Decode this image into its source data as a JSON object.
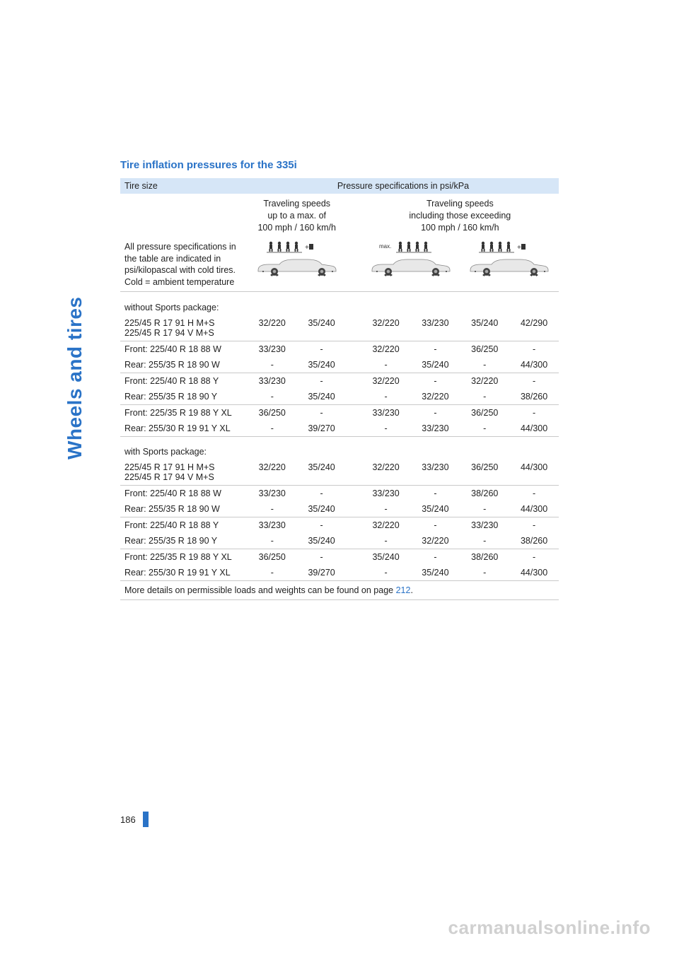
{
  "sidebar_label": "Wheels and tires",
  "section_title": "Tire inflation pressures for the 335i",
  "header": {
    "tire_size": "Tire size",
    "pressure_spec": "Pressure specifications in psi/kPa",
    "speed_low": "Traveling speeds\nup to a max. of\n100 mph / 160 km/h",
    "speed_high": "Traveling speeds\nincluding those exceeding\n100 mph / 160 km/h",
    "note": "All pressure specifications in the table are indicated in psi/kilopascal with cold tires. Cold = ambient temperature"
  },
  "sections": [
    {
      "label": "without Sports package:",
      "rows": [
        {
          "size": "225/45 R 17 91 H M+S\n225/45 R 17 94 V M+S",
          "v": [
            "32/220",
            "35/240",
            "32/220",
            "33/230",
            "35/240",
            "42/290"
          ],
          "rule": true
        },
        {
          "size": "Front: 225/40 R 18 88 W",
          "v": [
            "33/230",
            "-",
            "32/220",
            "-",
            "36/250",
            "-"
          ],
          "rule": false
        },
        {
          "size": "Rear: 255/35 R 18 90 W",
          "v": [
            "-",
            "35/240",
            "-",
            "35/240",
            "-",
            "44/300"
          ],
          "rule": true
        },
        {
          "size": "Front: 225/40 R 18 88 Y",
          "v": [
            "33/230",
            "-",
            "32/220",
            "-",
            "32/220",
            "-"
          ],
          "rule": false
        },
        {
          "size": "Rear: 255/35 R 18 90 Y",
          "v": [
            "-",
            "35/240",
            "-",
            "32/220",
            "-",
            "38/260"
          ],
          "rule": true
        },
        {
          "size": "Front: 225/35 R 19 88 Y XL",
          "v": [
            "36/250",
            "-",
            "33/230",
            "-",
            "36/250",
            "-"
          ],
          "rule": false
        },
        {
          "size": "Rear: 255/30 R 19 91 Y XL",
          "v": [
            "-",
            "39/270",
            "-",
            "33/230",
            "-",
            "44/300"
          ],
          "rule": true
        }
      ]
    },
    {
      "label": "with Sports package:",
      "rows": [
        {
          "size": "225/45 R 17 91 H M+S\n225/45 R 17 94 V M+S",
          "v": [
            "32/220",
            "35/240",
            "32/220",
            "33/230",
            "36/250",
            "44/300"
          ],
          "rule": true
        },
        {
          "size": "Front: 225/40 R 18 88 W",
          "v": [
            "33/230",
            "-",
            "33/230",
            "-",
            "38/260",
            "-"
          ],
          "rule": false
        },
        {
          "size": "Rear: 255/35 R 18 90 W",
          "v": [
            "-",
            "35/240",
            "-",
            "35/240",
            "-",
            "44/300"
          ],
          "rule": true
        },
        {
          "size": "Front: 225/40 R 18 88 Y",
          "v": [
            "33/230",
            "-",
            "32/220",
            "-",
            "33/230",
            "-"
          ],
          "rule": false
        },
        {
          "size": "Rear: 255/35 R 18 90 Y",
          "v": [
            "-",
            "35/240",
            "-",
            "32/220",
            "-",
            "38/260"
          ],
          "rule": true
        },
        {
          "size": "Front: 225/35 R 19 88 Y XL",
          "v": [
            "36/250",
            "-",
            "35/240",
            "-",
            "38/260",
            "-"
          ],
          "rule": false
        },
        {
          "size": "Rear: 255/30 R 19 91 Y XL",
          "v": [
            "-",
            "39/270",
            "-",
            "35/240",
            "-",
            "44/300"
          ],
          "rule": true
        }
      ]
    }
  ],
  "footer_text_pre": "More details on permissible loads and weights can be found on page ",
  "footer_link": "212",
  "footer_text_post": ".",
  "page_number": "186",
  "watermark": "carmanualsonline.info",
  "colors": {
    "accent": "#2a73c7",
    "header_bg": "#d6e6f7",
    "rule": "#c9c9c9",
    "watermark": "#d0d0d0"
  },
  "icons": {
    "people_luggage": "people-luggage-icon",
    "people_max": "people-max-icon",
    "car": "car-icon"
  }
}
